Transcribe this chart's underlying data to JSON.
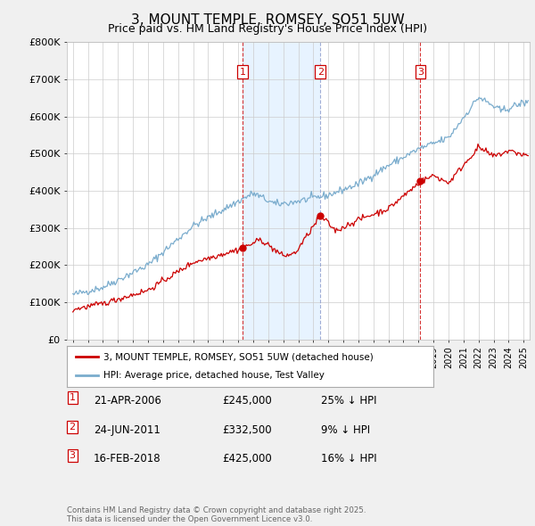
{
  "title": "3, MOUNT TEMPLE, ROMSEY, SO51 5UW",
  "subtitle": "Price paid vs. HM Land Registry's House Price Index (HPI)",
  "red_label": "3, MOUNT TEMPLE, ROMSEY, SO51 5UW (detached house)",
  "blue_label": "HPI: Average price, detached house, Test Valley",
  "transactions": [
    {
      "num": 1,
      "date": "21-APR-2006",
      "price": 245000,
      "pct": "25%",
      "dir": "↓",
      "x_year": 2006.3
    },
    {
      "num": 2,
      "date": "24-JUN-2011",
      "price": 332500,
      "pct": "9%",
      "dir": "↓",
      "x_year": 2011.47
    },
    {
      "num": 3,
      "date": "16-FEB-2018",
      "price": 425000,
      "pct": "16%",
      "dir": "↓",
      "x_year": 2018.12
    }
  ],
  "footnote": "Contains HM Land Registry data © Crown copyright and database right 2025.\nThis data is licensed under the Open Government Licence v3.0.",
  "ylim": [
    0,
    800000
  ],
  "xlim_start": 1994.6,
  "xlim_end": 2025.4,
  "background_color": "#f0f0f0",
  "plot_bg_color": "#ffffff",
  "grid_color": "#cccccc",
  "red_color": "#cc0000",
  "blue_color": "#7aaccd",
  "shade_color": "#ddeeff",
  "yticks": [
    0,
    100000,
    200000,
    300000,
    400000,
    500000,
    600000,
    700000,
    800000
  ],
  "ytick_labels": [
    "£0",
    "£100K",
    "£200K",
    "£300K",
    "£400K",
    "£500K",
    "£600K",
    "£700K",
    "£800K"
  ]
}
